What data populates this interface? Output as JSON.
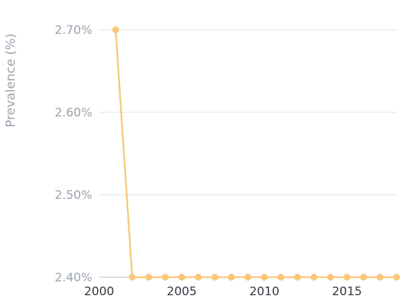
{
  "chart_data": {
    "type": "line",
    "ylabel": "Prevalence (%)",
    "xlabel": "",
    "title": "",
    "x_ticks": [
      "2000",
      "2005",
      "2010",
      "2015"
    ],
    "x_tick_values": [
      2000,
      2005,
      2010,
      2015
    ],
    "y_ticks": [
      "2.40%",
      "2.50%",
      "2.60%",
      "2.70%"
    ],
    "y_tick_values": [
      2.4,
      2.5,
      2.6,
      2.7
    ],
    "xlim": [
      2000,
      2018
    ],
    "ylim": [
      2.4,
      2.7
    ],
    "grid": true,
    "line_color": "#f8c979",
    "series": [
      {
        "x": [
          2001,
          2002,
          2003,
          2004,
          2005,
          2006,
          2007,
          2008,
          2009,
          2010,
          2011,
          2012,
          2013,
          2014,
          2015,
          2016,
          2017,
          2018
        ],
        "values": [
          2.7,
          2.4,
          2.4,
          2.4,
          2.4,
          2.4,
          2.4,
          2.4,
          2.4,
          2.4,
          2.4,
          2.4,
          2.4,
          2.4,
          2.4,
          2.4,
          2.4,
          2.4
        ]
      }
    ]
  }
}
